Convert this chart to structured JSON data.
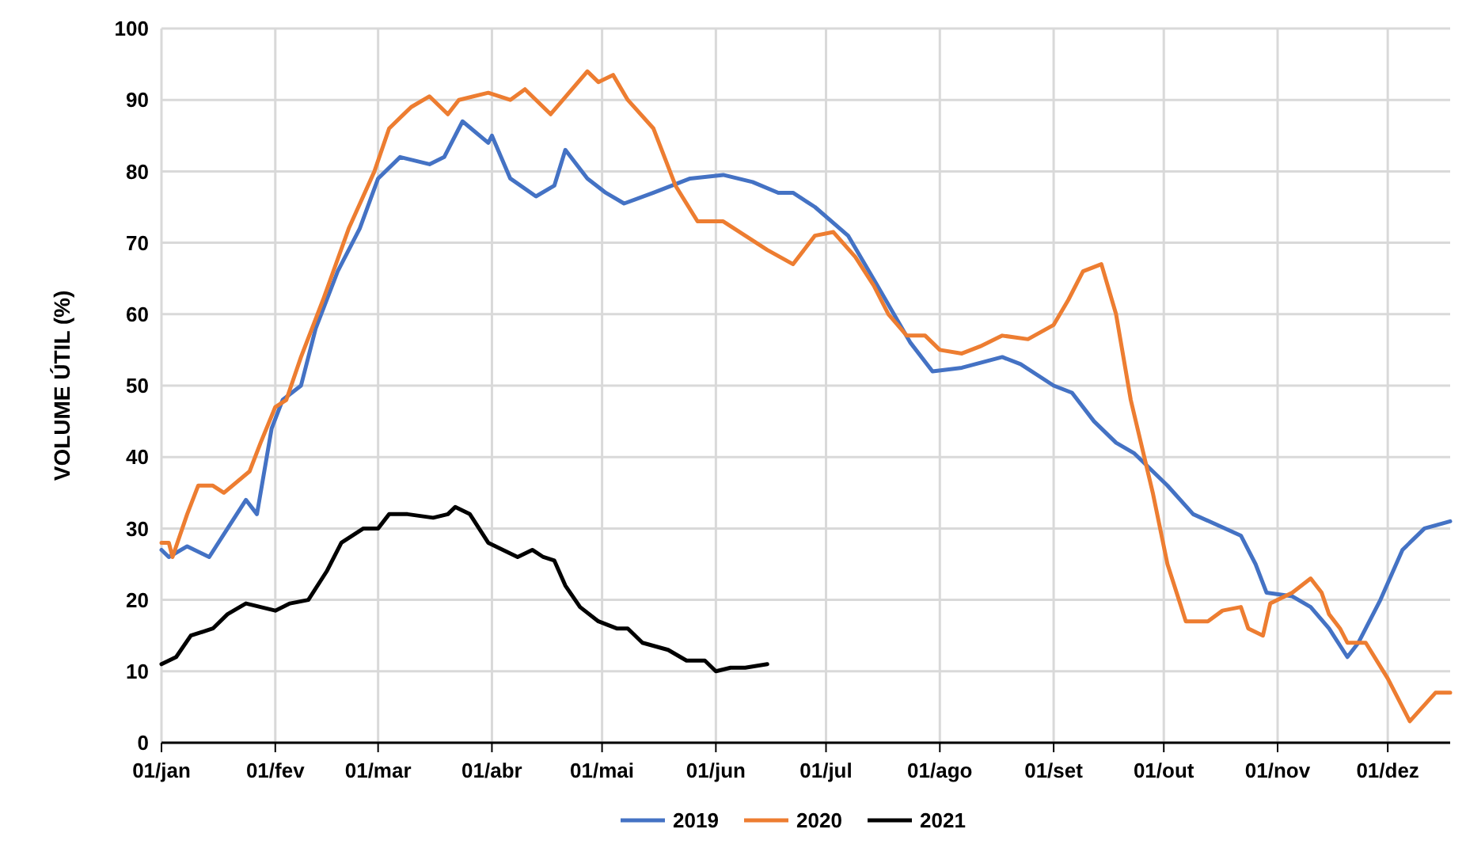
{
  "chart_data": {
    "type": "line",
    "ylabel": "VOLUME ÚTIL (%)",
    "xlim": [
      "--01-01",
      "--12-18"
    ],
    "ylim": [
      0,
      100
    ],
    "xticks": [
      {
        "value": "--01-01",
        "label": "01/jan"
      },
      {
        "value": "--02-01",
        "label": "01/fev"
      },
      {
        "value": "--03-01",
        "label": "01/mar"
      },
      {
        "value": "--04-01",
        "label": "01/abr"
      },
      {
        "value": "--05-01",
        "label": "01/mai"
      },
      {
        "value": "--06-01",
        "label": "01/jun"
      },
      {
        "value": "--07-01",
        "label": "01/jul"
      },
      {
        "value": "--08-01",
        "label": "01/ago"
      },
      {
        "value": "--09-01",
        "label": "01/set"
      },
      {
        "value": "--10-01",
        "label": "01/out"
      },
      {
        "value": "--11-01",
        "label": "01/nov"
      },
      {
        "value": "--12-01",
        "label": "01/dez"
      }
    ],
    "yticks": [
      0,
      10,
      20,
      30,
      40,
      50,
      60,
      70,
      80,
      90,
      100
    ],
    "grid": true,
    "legend": "bottom",
    "marker": "none",
    "line_style": "solid",
    "series": [
      {
        "name": "2019",
        "color": "#4472c4",
        "x": [
          "--01-01",
          "--01-03",
          "--01-08",
          "--01-14",
          "--01-19",
          "--01-24",
          "--01-27",
          "--01-28",
          "--01-31",
          "--02-03",
          "--02-08",
          "--02-12",
          "--02-18",
          "--02-24",
          "--03-01",
          "--03-07",
          "--03-15",
          "--03-19",
          "--03-24",
          "--03-31",
          "--04-01",
          "--04-06",
          "--04-13",
          "--04-18",
          "--04-21",
          "--04-27",
          "--05-02",
          "--05-07",
          "--05-15",
          "--05-25",
          "--06-03",
          "--06-11",
          "--06-18",
          "--06-22",
          "--06-28",
          "--07-07",
          "--07-15",
          "--07-24",
          "--07-30",
          "--08-07",
          "--08-18",
          "--08-23",
          "--09-01",
          "--09-06",
          "--09-12",
          "--09-18",
          "--09-23",
          "--10-02",
          "--10-09",
          "--10-22",
          "--10-26",
          "--10-29",
          "--11-05",
          "--11-10",
          "--11-15",
          "--11-20",
          "--11-23",
          "--11-29",
          "--12-05",
          "--12-11",
          "--12-18"
        ],
        "values": [
          27,
          26,
          27.5,
          26,
          30,
          34,
          32,
          35,
          44,
          48,
          50,
          58,
          66,
          72,
          79,
          82,
          81,
          82,
          87,
          84,
          85,
          79,
          76.5,
          78,
          83,
          79,
          77,
          75.5,
          77,
          79,
          79.5,
          78.5,
          77,
          77,
          75,
          71,
          64,
          56,
          52,
          52.5,
          54,
          53,
          50,
          49,
          45,
          42,
          40.5,
          36,
          32,
          29,
          25,
          21,
          20.5,
          19,
          16,
          12,
          14,
          20,
          27,
          30,
          31
        ]
      },
      {
        "name": "2020",
        "color": "#ed7d31",
        "x": [
          "--01-01",
          "--01-03",
          "--01-04",
          "--01-08",
          "--01-11",
          "--01-15",
          "--01-18",
          "--01-25",
          "--01-28",
          "--02-01",
          "--02-04",
          "--02-08",
          "--02-14",
          "--02-21",
          "--02-28",
          "--03-04",
          "--03-10",
          "--03-15",
          "--03-20",
          "--03-23",
          "--03-31",
          "--04-06",
          "--04-10",
          "--04-17",
          "--04-22",
          "--04-27",
          "--04-30",
          "--05-04",
          "--05-08",
          "--05-15",
          "--05-21",
          "--05-27",
          "--06-03",
          "--06-09",
          "--06-15",
          "--06-22",
          "--06-28",
          "--07-03",
          "--07-09",
          "--07-14",
          "--07-18",
          "--07-23",
          "--07-28",
          "--08-01",
          "--08-07",
          "--08-12",
          "--08-18",
          "--08-25",
          "--09-01",
          "--09-05",
          "--09-09",
          "--09-14",
          "--09-18",
          "--09-22",
          "--09-28",
          "--10-02",
          "--10-07",
          "--10-13",
          "--10-17",
          "--10-22",
          "--10-24",
          "--10-28",
          "--10-30",
          "--11-05",
          "--11-10",
          "--11-13",
          "--11-15",
          "--11-18",
          "--11-20",
          "--11-25",
          "--12-01",
          "--12-07",
          "--12-14",
          "--12-18"
        ],
        "values": [
          28,
          28,
          26,
          32,
          36,
          36,
          35,
          38,
          42,
          47,
          48,
          54,
          62,
          72,
          80,
          86,
          89,
          90.5,
          88,
          90,
          91,
          90,
          91.5,
          88,
          91,
          94,
          92.5,
          93.5,
          90,
          86,
          78,
          73,
          73,
          71,
          69,
          67,
          71,
          71.5,
          68,
          64,
          60,
          57,
          57,
          55,
          54.5,
          55.5,
          57,
          56.5,
          58.5,
          62,
          66,
          67,
          60,
          48,
          35,
          25,
          17,
          17,
          18.5,
          19,
          16,
          15,
          19.5,
          21,
          23,
          21,
          18,
          16,
          14,
          14,
          9,
          3,
          7,
          7
        ]
      },
      {
        "name": "2021",
        "color": "#000000",
        "x": [
          "--01-01",
          "--01-05",
          "--01-09",
          "--01-15",
          "--01-19",
          "--01-24",
          "--01-28",
          "--02-01",
          "--02-05",
          "--02-10",
          "--02-15",
          "--02-19",
          "--02-25",
          "--03-01",
          "--03-04",
          "--03-09",
          "--03-16",
          "--03-20",
          "--03-22",
          "--03-26",
          "--03-31",
          "--04-04",
          "--04-08",
          "--04-12",
          "--04-15",
          "--04-18",
          "--04-21",
          "--04-25",
          "--04-30",
          "--05-05",
          "--05-08",
          "--05-12",
          "--05-19",
          "--05-24",
          "--05-29",
          "--06-01",
          "--06-05",
          "--06-09",
          "--06-15"
        ],
        "values": [
          11,
          12,
          15,
          16,
          18,
          19.5,
          19,
          18.5,
          19.5,
          20,
          24,
          28,
          30,
          30,
          32,
          32,
          31.5,
          32,
          33,
          32,
          28,
          27,
          26,
          27,
          26,
          25.5,
          22,
          19,
          17,
          16,
          16,
          14,
          13,
          11.5,
          11.5,
          10,
          10.5,
          10.5,
          11
        ]
      }
    ]
  }
}
